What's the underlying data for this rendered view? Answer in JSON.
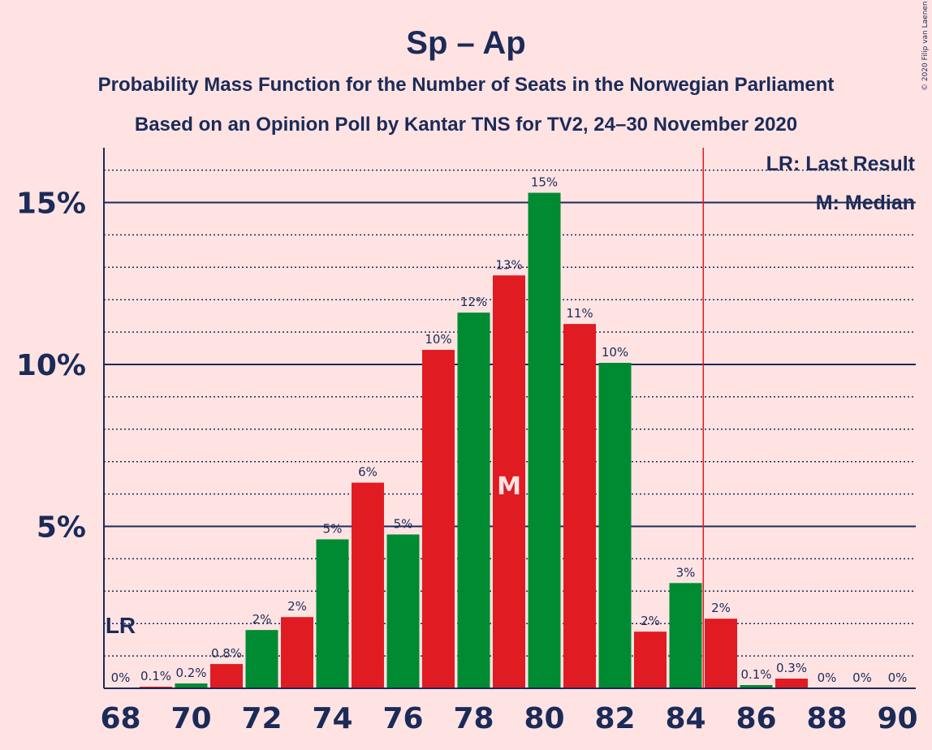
{
  "title": "Sp – Ap",
  "subtitle1": "Probability Mass Function for the Number of Seats in the Norwegian Parliament",
  "subtitle2": "Based on an Opinion Poll by Kantar TNS for TV2, 24–30 November 2020",
  "copyright": "© 2020 Filip van Laenen",
  "legend": {
    "lr": "LR: Last Result",
    "median": "M: Median"
  },
  "markers": {
    "lr_text": "LR",
    "median_text": "M"
  },
  "colors": {
    "background": "#FFE3E3",
    "text": "#1B2B58",
    "red": "#E01B22",
    "green": "#008A31"
  },
  "chart_data": {
    "type": "bar",
    "x": [
      68,
      69,
      70,
      71,
      72,
      73,
      74,
      75,
      76,
      77,
      78,
      79,
      80,
      81,
      82,
      83,
      84,
      85,
      86,
      87,
      88,
      89,
      90
    ],
    "values": [
      0,
      0.05,
      0.15,
      0.75,
      1.8,
      2.2,
      4.6,
      6.35,
      4.75,
      10.45,
      11.6,
      12.75,
      15.3,
      11.25,
      10.05,
      1.75,
      3.25,
      2.15,
      0.1,
      0.3,
      0,
      0,
      0
    ],
    "labels": [
      "0%",
      "0.1%",
      "0.2%",
      "0.8%",
      "2%",
      "2%",
      "5%",
      "6%",
      "5%",
      "10%",
      "12%",
      "13%",
      "15%",
      "11%",
      "10%",
      "2%",
      "3%",
      "2%",
      "0.1%",
      "0.3%",
      "0%",
      "0%",
      "0%"
    ],
    "x_ticks": [
      "68",
      "70",
      "72",
      "74",
      "76",
      "78",
      "80",
      "82",
      "84",
      "86",
      "88",
      "90"
    ],
    "y_ticks": [
      "5%",
      "10%",
      "15%"
    ],
    "ylim": [
      0,
      16.7
    ],
    "last_result": 68,
    "median": 79,
    "majority_line": 84.5,
    "grid": true
  }
}
